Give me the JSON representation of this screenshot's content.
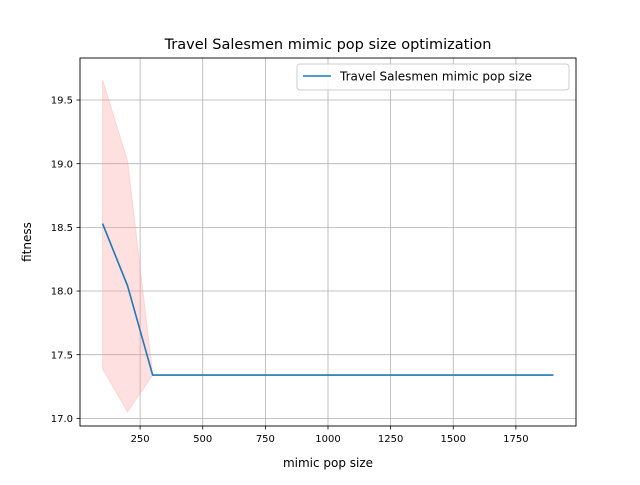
{
  "chart_data": {
    "type": "line",
    "title": "Travel Salesmen mimic pop size optimization",
    "xlabel": "mimic pop size",
    "ylabel": "fitness",
    "xlim": [
      10,
      1990
    ],
    "ylim": [
      16.94,
      19.83
    ],
    "grid": true,
    "legend_position": "top-right",
    "x_ticks": [
      250,
      500,
      750,
      1000,
      1250,
      1500,
      1750
    ],
    "x_tick_labels": [
      "250",
      "500",
      "750",
      "1000",
      "1250",
      "1500",
      "1750"
    ],
    "y_ticks": [
      17.0,
      17.5,
      18.0,
      18.5,
      19.0,
      19.5
    ],
    "y_tick_labels": [
      "17.0",
      "17.5",
      "18.0",
      "18.5",
      "19.0",
      "19.5"
    ],
    "series": [
      {
        "name": "Travel Salesmen mimic pop size",
        "color": "#1f77b4",
        "x": [
          100,
          200,
          300,
          400,
          500,
          600,
          700,
          800,
          900,
          1000,
          1100,
          1200,
          1300,
          1400,
          1500,
          1600,
          1700,
          1800,
          1900
        ],
        "values": [
          18.53,
          18.04,
          17.34,
          17.34,
          17.34,
          17.34,
          17.34,
          17.34,
          17.34,
          17.34,
          17.34,
          17.34,
          17.34,
          17.34,
          17.34,
          17.34,
          17.34,
          17.34,
          17.34
        ],
        "band": {
          "color": "#ff9999",
          "x": [
            100,
            200,
            300
          ],
          "upper": [
            19.66,
            19.02,
            17.35
          ],
          "lower": [
            17.39,
            17.05,
            17.34
          ]
        }
      }
    ]
  }
}
